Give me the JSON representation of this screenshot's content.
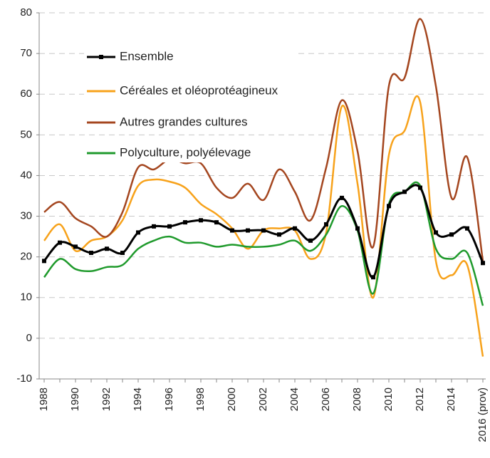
{
  "chart_data": {
    "type": "line",
    "categories": [
      "1988",
      null,
      "1990",
      null,
      "1992",
      null,
      "1994",
      null,
      "1996",
      null,
      "1998",
      null,
      "2000",
      null,
      "2002",
      null,
      "2004",
      null,
      "2006",
      null,
      "2008",
      null,
      "2010",
      null,
      "2012",
      null,
      "2014",
      null,
      "2016 (prov)"
    ],
    "series": [
      {
        "name": "Ensemble",
        "color": "#000000",
        "marker": "square",
        "values": [
          19,
          23.5,
          22.5,
          21,
          22,
          21,
          26,
          27.5,
          27.5,
          28.5,
          29,
          28.5,
          26.5,
          26.5,
          26.5,
          25.5,
          27,
          24,
          28,
          34.5,
          27,
          15,
          32.5,
          36,
          37,
          26,
          25.5,
          27,
          18.5
        ]
      },
      {
        "name": "Céréales et oléoprotéagineux",
        "color": "#f7a21b",
        "values": [
          24,
          28,
          21.5,
          24,
          25,
          29,
          37.5,
          39,
          38.5,
          37,
          33,
          30.5,
          27,
          22,
          26.5,
          27,
          26.5,
          19.5,
          26,
          57,
          38,
          10,
          45,
          51,
          58,
          19,
          15.5,
          18,
          -4.5
        ]
      },
      {
        "name": "Autres grandes cultures",
        "color": "#a4461f",
        "values": [
          31,
          33.5,
          29.5,
          27.5,
          25,
          31,
          42,
          41.5,
          44,
          43,
          43,
          37,
          34.5,
          38,
          34,
          41.5,
          36,
          29,
          42,
          58.5,
          46,
          22.5,
          62,
          64,
          78.5,
          62,
          34.5,
          44.5,
          19
        ]
      },
      {
        "name": "Polyculture, polyélevage",
        "color": "#1f9a2c",
        "values": [
          15,
          19.5,
          17,
          16.5,
          17.5,
          18,
          22,
          24,
          25,
          23.5,
          23.5,
          22.5,
          23,
          22.5,
          22.5,
          23,
          24,
          21.5,
          25.5,
          32.5,
          26.5,
          11,
          33,
          36,
          37.5,
          22,
          19.5,
          21,
          8
        ]
      }
    ],
    "ylim": [
      -10,
      80
    ],
    "yticks": [
      -10,
      0,
      10,
      20,
      30,
      40,
      50,
      60,
      70,
      80
    ],
    "grid": true
  }
}
